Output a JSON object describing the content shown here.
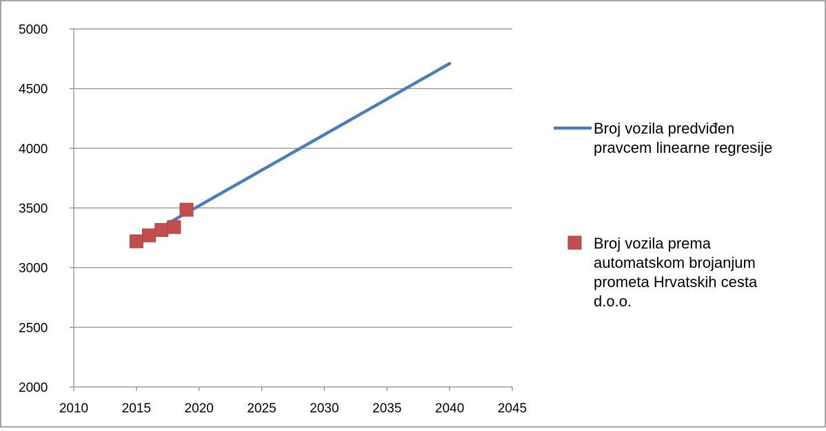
{
  "chart_data": {
    "type": "scatter",
    "title": "",
    "xlabel": "",
    "ylabel": "",
    "xlim": [
      2010,
      2045
    ],
    "ylim": [
      2000,
      5000
    ],
    "x_ticks": [
      "2010",
      "2015",
      "2020",
      "2025",
      "2030",
      "2035",
      "2040",
      "2045"
    ],
    "y_ticks": [
      "2000",
      "2500",
      "3000",
      "3500",
      "4000",
      "4500",
      "5000"
    ],
    "grid": "horizontal",
    "legend_position": "right",
    "series": [
      {
        "name": "Broj vozila predviđen pravcem linearne regresije",
        "name_lines": [
          "Broj vozila predviđen",
          "pravcem linearne regresije"
        ],
        "kind": "line",
        "color": "#4a7ebb",
        "x": [
          2015,
          2040
        ],
        "y": [
          3220,
          4710
        ]
      },
      {
        "name": "Broj vozila prema automatskom brojanjum prometa Hrvatskih cesta d.o.o.",
        "name_lines": [
          "Broj vozila prema",
          "automatskom brojanjum",
          "prometa Hrvatskih cesta",
          "d.o.o."
        ],
        "kind": "scatter",
        "marker": "square",
        "color": "#c0504d",
        "x": [
          2015,
          2016,
          2017,
          2018,
          2019
        ],
        "y": [
          3220,
          3270,
          3315,
          3340,
          3485
        ]
      }
    ]
  }
}
